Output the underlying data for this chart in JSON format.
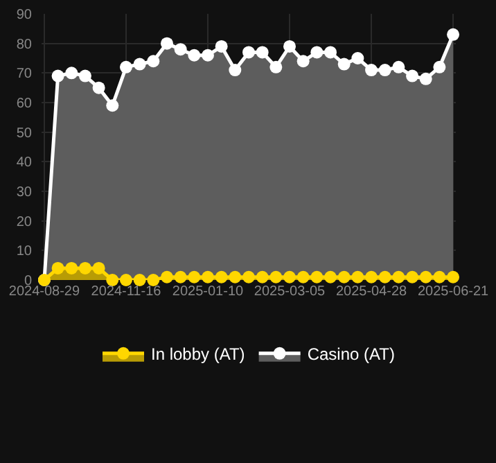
{
  "chart_data": {
    "type": "area",
    "categories": [
      "2024-08-29",
      null,
      null,
      null,
      null,
      null,
      "2024-11-16",
      null,
      null,
      null,
      null,
      null,
      "2025-01-10",
      null,
      null,
      null,
      null,
      null,
      "2025-03-05",
      null,
      null,
      null,
      null,
      null,
      "2025-04-28",
      null,
      null,
      null,
      null,
      null,
      "2025-06-21"
    ],
    "series": [
      {
        "name": "In lobby (AT)",
        "color": "#ffd700",
        "values": [
          0,
          4,
          4,
          4,
          4,
          0,
          0,
          0,
          0,
          1,
          1,
          1,
          1,
          1,
          1,
          1,
          1,
          1,
          1,
          1,
          1,
          1,
          1,
          1,
          1,
          1,
          1,
          1,
          1,
          1,
          1
        ]
      },
      {
        "name": "Casino (AT)",
        "color": "#ffffff",
        "values": [
          0,
          69,
          70,
          69,
          65,
          59,
          72,
          73,
          74,
          80,
          78,
          76,
          76,
          79,
          71,
          77,
          77,
          72,
          79,
          74,
          77,
          77,
          73,
          75,
          71,
          71,
          72,
          69,
          68,
          72,
          83
        ]
      }
    ],
    "ylim": [
      0,
      90
    ],
    "yticks": [
      0,
      10,
      20,
      30,
      40,
      50,
      60,
      70,
      80,
      90
    ],
    "grid": true,
    "legend": "bottom",
    "marker": "circle",
    "line_style": "solid"
  }
}
